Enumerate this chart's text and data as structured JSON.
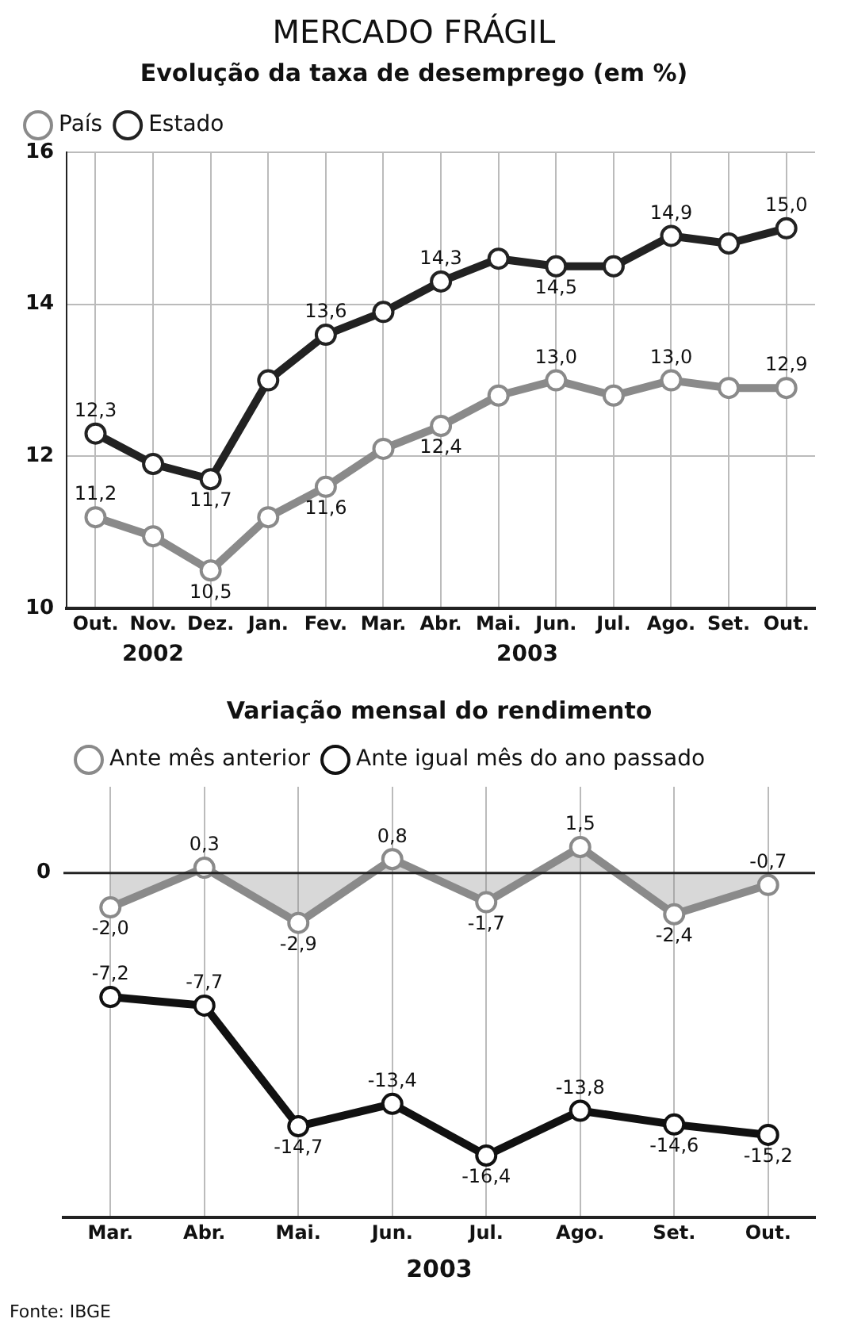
{
  "chart_data": [
    {
      "type": "line",
      "title": "MERCADO FRÁGIL",
      "subtitle": "Evolução da taxa de desemprego (em %)",
      "categories": [
        "Out.",
        "Nov.",
        "Dez.",
        "Jan.",
        "Fev.",
        "Mar.",
        "Abr.",
        "Mai.",
        "Jun.",
        "Jul.",
        "Ago.",
        "Set.",
        "Out."
      ],
      "series": [
        {
          "name": "País",
          "color": "#8a8a8a",
          "values": [
            11.2,
            10.95,
            10.5,
            11.2,
            11.6,
            12.1,
            12.4,
            12.8,
            13.0,
            12.8,
            13.0,
            12.9,
            12.9
          ],
          "value_labels": [
            "11,2",
            null,
            "10,5",
            null,
            "11,6",
            null,
            "12,4",
            null,
            "13,0",
            null,
            "13,0",
            null,
            "12,9"
          ]
        },
        {
          "name": "Estado",
          "color": "#222222",
          "values": [
            12.3,
            11.9,
            11.7,
            13.0,
            13.6,
            13.9,
            14.3,
            14.6,
            14.5,
            14.5,
            14.9,
            14.8,
            15.0
          ],
          "value_labels": [
            "12,3",
            null,
            "11,7",
            null,
            "13,6",
            null,
            "14,3",
            null,
            "14,5",
            null,
            "14,9",
            null,
            "15,0"
          ]
        }
      ],
      "ylim": [
        10,
        16
      ],
      "yticks": [
        10,
        12,
        14,
        16
      ],
      "grid": true,
      "legend": "top left",
      "marker": "circle",
      "line_style": "solid",
      "annotations": [
        "2002",
        "2003"
      ]
    },
    {
      "type": "line",
      "title": "Variação mensal do rendimento",
      "xlabel": "2003",
      "categories": [
        "Mar.",
        "Abr.",
        "Mai.",
        "Jun.",
        "Jul.",
        "Ago.",
        "Set.",
        "Out."
      ],
      "series": [
        {
          "name": "Ante mês anterior",
          "type": "area",
          "color": "#8a8a8a",
          "values": [
            -2.0,
            0.3,
            -2.9,
            0.8,
            -1.7,
            1.5,
            -2.4,
            -0.7
          ],
          "value_labels": [
            "-2,0",
            "0,3",
            "-2,9",
            "0,8",
            "-1,7",
            "1,5",
            "-2,4",
            "-0,7"
          ]
        },
        {
          "name": "Ante igual mês do ano passado",
          "color": "#111111",
          "values": [
            -7.2,
            -7.7,
            -14.7,
            -13.4,
            -16.4,
            -13.8,
            -14.6,
            -15.2
          ],
          "value_labels": [
            "-7,2",
            "-7,7",
            "-14,7",
            "-13,4",
            "-16,4",
            "-13,8",
            "-14,6",
            "-15,2"
          ]
        }
      ],
      "ref_lines": [
        {
          "axis": "y",
          "value": 0,
          "label": "0"
        }
      ],
      "grid": "x",
      "legend": "top left",
      "marker": "circle",
      "line_style": "solid",
      "annotations": [
        "Fonte: IBGE"
      ]
    }
  ]
}
